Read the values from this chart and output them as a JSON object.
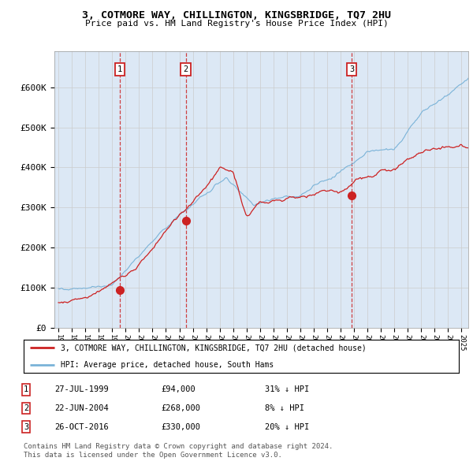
{
  "title": "3, COTMORE WAY, CHILLINGTON, KINGSBRIDGE, TQ7 2HU",
  "subtitle": "Price paid vs. HM Land Registry's House Price Index (HPI)",
  "ylim": [
    0,
    700000
  ],
  "yticks": [
    0,
    100000,
    200000,
    300000,
    400000,
    500000,
    600000
  ],
  "ytick_labels": [
    "£0",
    "£100K",
    "£200K",
    "£300K",
    "£400K",
    "£500K",
    "£600K"
  ],
  "transactions": [
    {
      "num": 1,
      "date": "27-JUL-1999",
      "price": 94000,
      "year": 1999.57,
      "hpi_pct": "31% ↓ HPI"
    },
    {
      "num": 2,
      "date": "22-JUN-2004",
      "price": 268000,
      "year": 2004.47,
      "hpi_pct": "8% ↓ HPI"
    },
    {
      "num": 3,
      "date": "26-OCT-2016",
      "price": 330000,
      "year": 2016.82,
      "hpi_pct": "20% ↓ HPI"
    }
  ],
  "legend_entry1": "3, COTMORE WAY, CHILLINGTON, KINGSBRIDGE, TQ7 2HU (detached house)",
  "legend_entry2": "HPI: Average price, detached house, South Hams",
  "footer1": "Contains HM Land Registry data © Crown copyright and database right 2024.",
  "footer2": "This data is licensed under the Open Government Licence v3.0.",
  "hpi_color": "#7ab3d8",
  "price_color": "#cc2222",
  "vline_color": "#cc2222",
  "bg_color": "#dce8f5",
  "plot_bg": "#ffffff",
  "grid_color": "#cccccc",
  "xmin": 1995,
  "xmax": 2025.5
}
